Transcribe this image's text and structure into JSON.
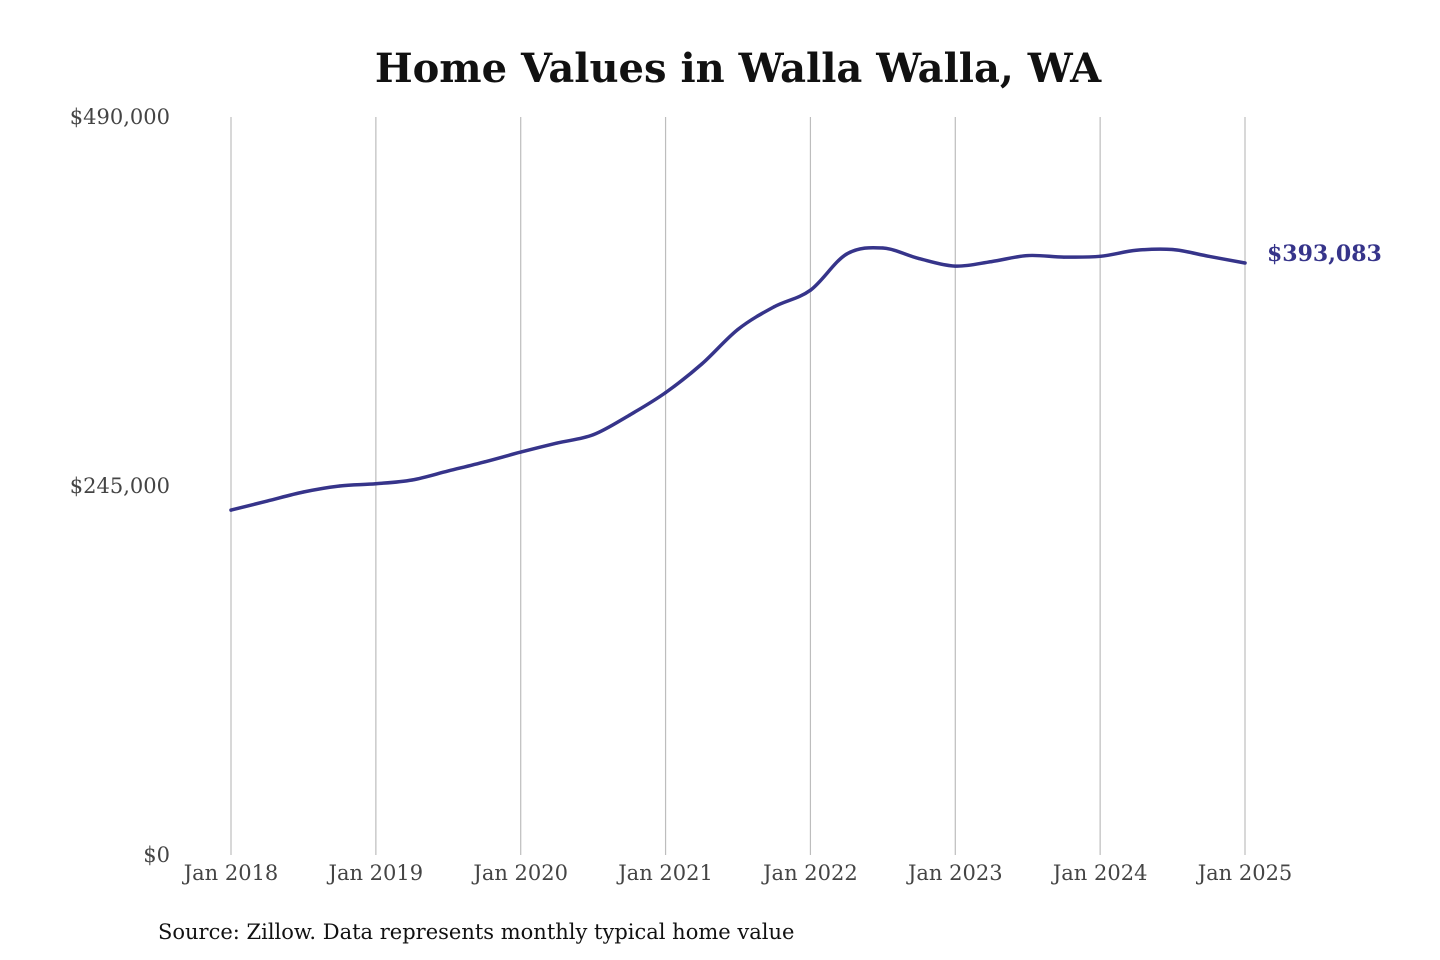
{
  "chart_data": {
    "type": "line",
    "title": "Home Values in Walla Walla, WA",
    "xlabel": "",
    "ylabel": "",
    "source": "Source: Zillow. Data represents monthly typical home value",
    "ylim": [
      0,
      490000
    ],
    "xlim": [
      "2018-01",
      "2025-01"
    ],
    "y_ticks": [
      {
        "value": 0,
        "label": "$0"
      },
      {
        "value": 245000,
        "label": "$245,000"
      },
      {
        "value": 490000,
        "label": "$490,000"
      }
    ],
    "x_ticks": [
      {
        "date": "2018-01",
        "label": "Jan 2018"
      },
      {
        "date": "2019-01",
        "label": "Jan 2019"
      },
      {
        "date": "2020-01",
        "label": "Jan 2020"
      },
      {
        "date": "2021-01",
        "label": "Jan 2021"
      },
      {
        "date": "2022-01",
        "label": "Jan 2022"
      },
      {
        "date": "2023-01",
        "label": "Jan 2023"
      },
      {
        "date": "2024-01",
        "label": "Jan 2024"
      },
      {
        "date": "2025-01",
        "label": "Jan 2025"
      }
    ],
    "grid": {
      "vertical": true,
      "horizontal": false
    },
    "series": [
      {
        "color": "#36348a",
        "end_label": "$393,083",
        "points": [
          {
            "x": "2018-01",
            "y": 229000
          },
          {
            "x": "2018-04",
            "y": 235000
          },
          {
            "x": "2018-07",
            "y": 241000
          },
          {
            "x": "2018-10",
            "y": 245000
          },
          {
            "x": "2019-01",
            "y": 246500
          },
          {
            "x": "2019-04",
            "y": 249000
          },
          {
            "x": "2019-07",
            "y": 255000
          },
          {
            "x": "2019-10",
            "y": 261000
          },
          {
            "x": "2020-01",
            "y": 267500
          },
          {
            "x": "2020-04",
            "y": 273500
          },
          {
            "x": "2020-07",
            "y": 279000
          },
          {
            "x": "2020-10",
            "y": 292000
          },
          {
            "x": "2021-01",
            "y": 307000
          },
          {
            "x": "2021-04",
            "y": 326000
          },
          {
            "x": "2021-07",
            "y": 349000
          },
          {
            "x": "2021-10",
            "y": 364000
          },
          {
            "x": "2022-01",
            "y": 375000
          },
          {
            "x": "2022-04",
            "y": 399000
          },
          {
            "x": "2022-07",
            "y": 403000
          },
          {
            "x": "2022-10",
            "y": 396000
          },
          {
            "x": "2023-01",
            "y": 391000
          },
          {
            "x": "2023-04",
            "y": 394000
          },
          {
            "x": "2023-07",
            "y": 398000
          },
          {
            "x": "2023-10",
            "y": 397000
          },
          {
            "x": "2024-01",
            "y": 397500
          },
          {
            "x": "2024-04",
            "y": 401500
          },
          {
            "x": "2024-07",
            "y": 402000
          },
          {
            "x": "2024-10",
            "y": 397500
          },
          {
            "x": "2025-01",
            "y": 393083
          }
        ]
      }
    ]
  }
}
